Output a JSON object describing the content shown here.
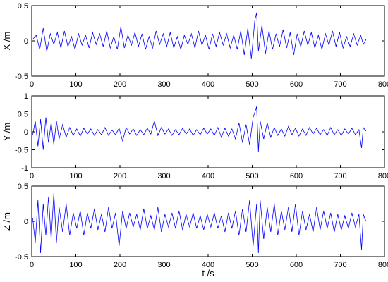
{
  "chart_data": [
    {
      "type": "line",
      "ylabel": "X /m",
      "xlim": [
        0,
        800
      ],
      "ylim": [
        -0.5,
        0.5
      ],
      "xticks": [
        0,
        100,
        200,
        300,
        400,
        500,
        600,
        700,
        800
      ],
      "yticks": [
        -0.5,
        0,
        0.5
      ],
      "ytick_labels": [
        "-0.5",
        "0",
        "0.5"
      ],
      "series": [
        {
          "color": "#0000ff",
          "x": [
            2,
            10,
            18,
            26,
            34,
            42,
            50,
            58,
            66,
            74,
            82,
            90,
            98,
            106,
            114,
            122,
            130,
            138,
            146,
            154,
            162,
            170,
            178,
            186,
            194,
            202,
            210,
            218,
            226,
            234,
            242,
            250,
            258,
            266,
            274,
            282,
            290,
            298,
            306,
            314,
            322,
            330,
            338,
            346,
            354,
            362,
            370,
            378,
            386,
            394,
            402,
            410,
            418,
            426,
            434,
            442,
            450,
            458,
            466,
            474,
            482,
            490,
            498,
            506,
            510,
            514,
            522,
            530,
            538,
            546,
            554,
            562,
            570,
            578,
            586,
            594,
            602,
            610,
            618,
            626,
            634,
            642,
            650,
            658,
            666,
            674,
            682,
            690,
            698,
            706,
            714,
            722,
            730,
            738,
            746,
            752,
            758
          ],
          "y": [
            0.02,
            0.08,
            -0.12,
            0.18,
            -0.15,
            0.1,
            -0.05,
            0.12,
            -0.1,
            0.14,
            -0.08,
            0.06,
            -0.12,
            0.1,
            -0.06,
            0.08,
            -0.1,
            0.12,
            -0.05,
            0.1,
            -0.08,
            0.14,
            -0.1,
            0.06,
            -0.12,
            0.2,
            -0.1,
            0.08,
            -0.06,
            0.12,
            -0.08,
            0.1,
            -0.12,
            0.06,
            -0.1,
            0.14,
            -0.05,
            0.1,
            -0.08,
            0.12,
            -0.1,
            0.06,
            -0.12,
            0.08,
            -0.05,
            0.1,
            -0.1,
            0.14,
            -0.06,
            0.08,
            -0.12,
            0.1,
            -0.08,
            0.12,
            -0.06,
            0.1,
            -0.1,
            0.08,
            -0.12,
            0.14,
            -0.2,
            0.18,
            -0.25,
            0.3,
            0.4,
            -0.15,
            0.22,
            -0.18,
            0.14,
            -0.12,
            0.1,
            -0.08,
            0.16,
            -0.1,
            0.12,
            -0.2,
            0.1,
            -0.08,
            0.14,
            -0.06,
            0.12,
            -0.1,
            0.08,
            -0.12,
            0.1,
            -0.06,
            0.14,
            -0.08,
            0.12,
            -0.1,
            0.06,
            -0.08,
            0.1,
            -0.06,
            0.08,
            -0.05,
            0.02
          ]
        }
      ]
    },
    {
      "type": "line",
      "ylabel": "Y /m",
      "xlim": [
        0,
        800
      ],
      "ylim": [
        -1,
        1
      ],
      "xticks": [
        0,
        100,
        200,
        300,
        400,
        500,
        600,
        700,
        800
      ],
      "yticks": [
        -1,
        -0.5,
        0,
        0.5,
        1
      ],
      "ytick_labels": [
        "-1",
        "-0.5",
        "0",
        "0.5",
        "1"
      ],
      "series": [
        {
          "color": "#0000ff",
          "x": [
            2,
            8,
            14,
            20,
            26,
            32,
            38,
            44,
            50,
            56,
            62,
            70,
            78,
            86,
            94,
            102,
            110,
            118,
            126,
            134,
            142,
            150,
            158,
            166,
            174,
            182,
            190,
            198,
            206,
            214,
            222,
            230,
            238,
            246,
            254,
            262,
            270,
            278,
            286,
            294,
            302,
            310,
            318,
            326,
            334,
            342,
            350,
            358,
            366,
            374,
            382,
            390,
            398,
            406,
            414,
            422,
            430,
            438,
            446,
            454,
            462,
            470,
            478,
            486,
            494,
            502,
            510,
            514,
            518,
            526,
            534,
            542,
            550,
            558,
            566,
            574,
            582,
            590,
            598,
            606,
            614,
            622,
            630,
            638,
            646,
            654,
            662,
            670,
            678,
            686,
            694,
            702,
            710,
            718,
            726,
            734,
            742,
            748,
            752,
            758
          ],
          "y": [
            -0.1,
            0.3,
            -0.4,
            0.35,
            -0.5,
            0.4,
            -0.3,
            0.25,
            -0.35,
            0.3,
            -0.2,
            0.2,
            -0.15,
            0.12,
            -0.1,
            0.08,
            -0.12,
            0.1,
            -0.06,
            0.08,
            -0.1,
            0.06,
            -0.08,
            0.12,
            -0.1,
            0.05,
            -0.08,
            0.1,
            -0.25,
            0.12,
            -0.06,
            0.08,
            -0.1,
            0.06,
            -0.08,
            0.1,
            -0.06,
            0.3,
            -0.1,
            0.12,
            -0.06,
            0.08,
            -0.1,
            0.06,
            -0.08,
            0.1,
            -0.06,
            0.08,
            -0.1,
            0.06,
            -0.08,
            0.1,
            -0.06,
            0.08,
            -0.1,
            0.12,
            -0.15,
            0.1,
            -0.12,
            0.08,
            -0.2,
            0.25,
            -0.3,
            0.2,
            -0.35,
            0.4,
            0.7,
            -0.55,
            0.3,
            -0.2,
            0.25,
            -0.15,
            0.12,
            -0.1,
            0.08,
            -0.12,
            0.15,
            -0.08,
            0.1,
            -0.12,
            0.08,
            -0.1,
            0.12,
            -0.06,
            0.1,
            -0.08,
            0.06,
            -0.1,
            0.12,
            -0.08,
            0.06,
            -0.1,
            0.08,
            -0.06,
            0.1,
            -0.08,
            0.06,
            -0.45,
            0.12,
            0.02
          ]
        }
      ]
    },
    {
      "type": "line",
      "ylabel": "Z /m",
      "xlabel": "t /s",
      "xlim": [
        0,
        800
      ],
      "ylim": [
        -0.5,
        0.5
      ],
      "xticks": [
        0,
        100,
        200,
        300,
        400,
        500,
        600,
        700,
        800
      ],
      "yticks": [
        -0.5,
        0,
        0.5
      ],
      "ytick_labels": [
        "-0.5",
        "0",
        "0.5"
      ],
      "series": [
        {
          "color": "#0000ff",
          "x": [
            2,
            8,
            14,
            20,
            26,
            32,
            38,
            44,
            50,
            56,
            62,
            70,
            78,
            86,
            94,
            102,
            110,
            118,
            126,
            134,
            142,
            150,
            158,
            166,
            174,
            182,
            190,
            198,
            206,
            214,
            222,
            230,
            238,
            246,
            254,
            262,
            270,
            278,
            286,
            294,
            302,
            310,
            318,
            326,
            334,
            342,
            350,
            358,
            366,
            374,
            382,
            390,
            398,
            406,
            414,
            422,
            430,
            438,
            446,
            454,
            462,
            470,
            478,
            486,
            494,
            502,
            510,
            514,
            518,
            526,
            534,
            542,
            550,
            558,
            566,
            574,
            582,
            590,
            598,
            606,
            614,
            622,
            630,
            638,
            646,
            654,
            662,
            670,
            678,
            686,
            694,
            702,
            710,
            718,
            726,
            734,
            742,
            748,
            752,
            758
          ],
          "y": [
            0.05,
            -0.3,
            0.3,
            -0.45,
            0.25,
            -0.2,
            0.35,
            -0.25,
            0.4,
            -0.3,
            0.2,
            -0.15,
            0.25,
            -0.2,
            0.12,
            -0.1,
            0.15,
            -0.2,
            0.12,
            -0.1,
            0.18,
            -0.12,
            0.1,
            -0.15,
            0.2,
            -0.1,
            0.12,
            -0.35,
            0.15,
            -0.1,
            0.12,
            -0.08,
            0.1,
            -0.12,
            0.18,
            -0.1,
            0.08,
            -0.12,
            0.2,
            -0.15,
            0.1,
            -0.08,
            0.12,
            -0.1,
            0.15,
            -0.12,
            0.1,
            -0.08,
            0.12,
            -0.1,
            0.08,
            -0.12,
            0.1,
            -0.08,
            0.12,
            -0.1,
            0.08,
            -0.15,
            0.12,
            -0.1,
            0.15,
            -0.2,
            0.18,
            -0.15,
            0.3,
            -0.35,
            0.25,
            -0.45,
            0.3,
            -0.25,
            0.2,
            -0.15,
            0.25,
            -0.2,
            0.15,
            -0.12,
            0.2,
            -0.15,
            0.25,
            -0.2,
            0.15,
            -0.12,
            0.1,
            -0.15,
            0.2,
            -0.12,
            0.15,
            -0.1,
            0.12,
            -0.15,
            0.1,
            -0.12,
            0.08,
            -0.1,
            0.12,
            -0.08,
            0.1,
            -0.4,
            0.1,
            0.0
          ]
        }
      ]
    }
  ]
}
